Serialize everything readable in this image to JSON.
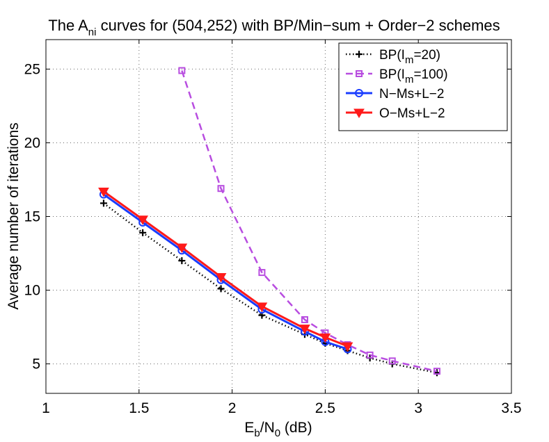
{
  "chart_data": {
    "type": "line",
    "title": {
      "main": "The A",
      "sub": "ni",
      "rest": " curves for (504,252) with BP/Min−sum + Order−2 schemes"
    },
    "xlabel": {
      "a": "E",
      "a_sub": "b",
      "b": "/N",
      "b_sub": "0",
      "rest": " (dB)"
    },
    "ylabel": "Average number of iterations",
    "xlim": [
      1,
      3.5
    ],
    "ylim": [
      3,
      27
    ],
    "xticks": [
      1,
      1.5,
      2,
      2.5,
      3,
      3.5
    ],
    "xtick_labels": [
      "1",
      "1.5",
      "2",
      "2.5",
      "3",
      "3.5"
    ],
    "yticks": [
      5,
      10,
      15,
      20,
      25
    ],
    "ytick_labels": [
      "5",
      "10",
      "15",
      "20",
      "25"
    ],
    "grid": true,
    "legend_position": "top-right",
    "series": [
      {
        "name": "BP(I_m=20)",
        "legend": {
          "pre": "BP(I",
          "sub": "m",
          "post": "=20)"
        },
        "color": "#000000",
        "line_style": "dotted",
        "marker": "plus",
        "x": [
          1.31,
          1.52,
          1.73,
          1.94,
          2.16,
          2.39,
          2.5,
          2.62,
          2.74,
          2.86,
          3.1
        ],
        "y": [
          15.9,
          13.9,
          12.0,
          10.1,
          8.3,
          7.0,
          6.4,
          5.9,
          5.4,
          5.0,
          4.4
        ]
      },
      {
        "name": "BP(I_m=100)",
        "legend": {
          "pre": "BP(I",
          "sub": "m",
          "post": "=100)"
        },
        "color": "#b84de0",
        "line_style": "dashed",
        "marker": "square",
        "x": [
          1.73,
          1.94,
          2.16,
          2.39,
          2.5,
          2.62,
          2.74,
          2.86,
          3.1
        ],
        "y": [
          24.9,
          16.9,
          11.2,
          8.0,
          7.1,
          6.3,
          5.6,
          5.2,
          4.5
        ]
      },
      {
        "name": "N−Ms+L−2",
        "legend": {
          "pre": "N−Ms+L−2",
          "sub": "",
          "post": ""
        },
        "color": "#1a3cff",
        "line_style": "solid",
        "marker": "circle",
        "x": [
          1.31,
          1.52,
          1.73,
          1.94,
          2.16,
          2.39,
          2.5,
          2.62
        ],
        "y": [
          16.5,
          14.6,
          12.7,
          10.7,
          8.7,
          7.2,
          6.5,
          6.0
        ]
      },
      {
        "name": "O−Ms+L−2",
        "legend": {
          "pre": "O−Ms+L−2",
          "sub": "",
          "post": ""
        },
        "color": "#ff1a1a",
        "line_style": "solid",
        "marker": "triangle-down",
        "x": [
          1.31,
          1.52,
          1.73,
          1.94,
          2.16,
          2.39,
          2.5,
          2.62
        ],
        "y": [
          16.7,
          14.8,
          12.9,
          10.9,
          8.9,
          7.4,
          6.8,
          6.2
        ]
      }
    ]
  }
}
